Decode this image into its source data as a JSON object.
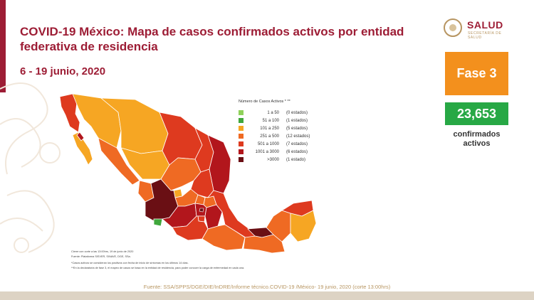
{
  "header": {
    "title": "COVID-19 México: Mapa de casos confirmados activos por entidad federativa de residencia",
    "date_range": "6 - 19 junio, 2020"
  },
  "logo": {
    "name": "SALUD",
    "sub": "SECRETARÍA DE SALUD"
  },
  "phase": {
    "label": "Fase 3",
    "color": "#f3901d"
  },
  "summary": {
    "count": "23,653",
    "label_line1": "confirmados",
    "label_line2": "activos",
    "color": "#27a845"
  },
  "legend": {
    "title": "Número de Casos Activos * **",
    "items": [
      {
        "range": "1 a 50",
        "states": "(0 estados)",
        "color": "#8fd15a"
      },
      {
        "range": "51 a 100",
        "states": "(1 estados)",
        "color": "#3fa73c"
      },
      {
        "range": "101 a 250",
        "states": "(5 estados)",
        "color": "#f6a623"
      },
      {
        "range": "251 a 500",
        "states": "(12 estados)",
        "color": "#ef6a23"
      },
      {
        "range": "501 a 1000",
        "states": "(7 estados)",
        "color": "#de3a1f"
      },
      {
        "range": "1001 a 3000",
        "states": "(6 estados)",
        "color": "#b2161c"
      },
      {
        "range": ">3000",
        "states": "(1 estado)",
        "color": "#6a0f14"
      }
    ]
  },
  "notes": [
    "Cierre con corte a las 13:00hrs, 19 de junio de 2020",
    "Fuente: Plataforma SISVER, SINAVE, DGE, SSa.",
    "*Casos activos se consideran los positivos con fecha de inicio de síntomas en los últimos 14 días.",
    "**En la declaratoria de fase 3, el mapeo de casos se basa en la entidad de residencia, para poder conocer la carga de enfermedad en cada una."
  ],
  "footer": "Fuente: SSA/SPPS/DGE/DIE/InDRE/Informe técnico.COVID-19 /México- 19 junio, 2020 (corte 13:00hrs)"
}
